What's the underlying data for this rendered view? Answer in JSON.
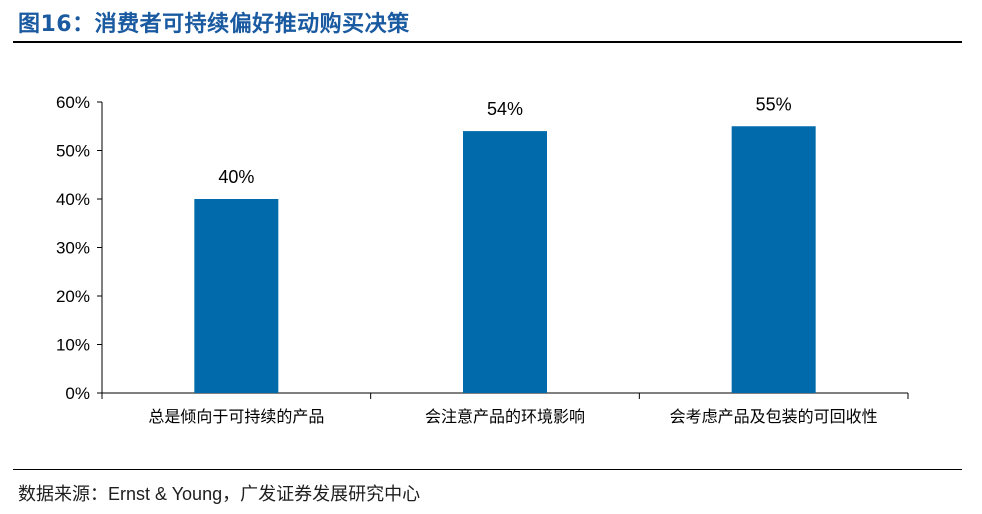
{
  "figure": {
    "title": "图16：消费者可持续偏好推动购买决策",
    "source_label": "数据来源：",
    "source_en": "Ernst & Young",
    "source_cn": "，广发证券发展研究中心"
  },
  "chart_data": {
    "type": "bar",
    "categories": [
      "总是倾向于可持续的产品",
      "会注意产品的环境影响",
      "会考虑产品及包装的可回收性"
    ],
    "values": [
      40,
      54,
      55
    ],
    "value_labels": [
      "40%",
      "54%",
      "55%"
    ],
    "yticks": [
      0,
      10,
      20,
      30,
      40,
      50,
      60
    ],
    "ytick_labels": [
      "0%",
      "10%",
      "20%",
      "30%",
      "40%",
      "50%",
      "60%"
    ],
    "ylim": [
      0,
      60
    ],
    "bar_color": "#006aab",
    "grid": false,
    "legend": "none"
  }
}
